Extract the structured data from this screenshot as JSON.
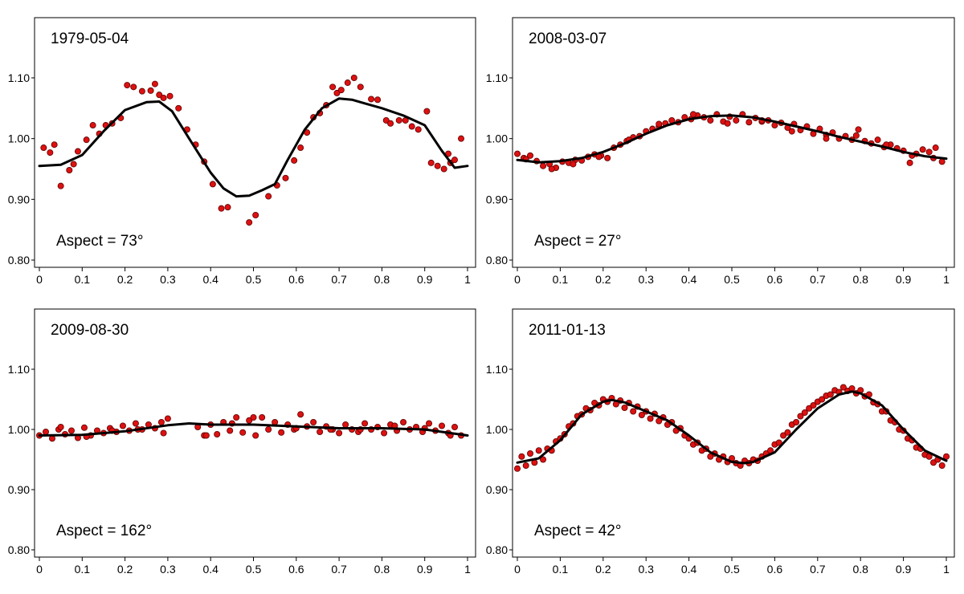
{
  "chart_data": [
    {
      "type": "scatter",
      "title": "1979-05-04",
      "annotation": "Aspect = 73°",
      "xlim": [
        0,
        1
      ],
      "ylim": [
        0.8,
        1.2
      ],
      "xticks": [
        0,
        0.1,
        0.2,
        0.3,
        0.4,
        0.5,
        0.6,
        0.7,
        0.8,
        0.9,
        1
      ],
      "xtick_labels": [
        "0",
        "0.1",
        "0.2",
        "0.3",
        "0.4",
        "0.5",
        "0.6",
        "0.7",
        "0.8",
        "0.9",
        "1"
      ],
      "yticks": [
        0.8,
        0.9,
        1.0,
        1.1
      ],
      "ytick_labels": [
        "0.80",
        "0.90",
        "1.00",
        "1.10"
      ],
      "series": [
        {
          "kind": "points",
          "color": "#dd1111",
          "x": [
            0.01,
            0.025,
            0.035,
            0.05,
            0.07,
            0.08,
            0.09,
            0.11,
            0.125,
            0.14,
            0.155,
            0.17,
            0.19,
            0.205,
            0.22,
            0.24,
            0.26,
            0.27,
            0.28,
            0.29,
            0.305,
            0.325,
            0.345,
            0.365,
            0.385,
            0.405,
            0.425,
            0.44,
            0.49,
            0.505,
            0.535,
            0.555,
            0.575,
            0.595,
            0.61,
            0.625,
            0.64,
            0.655,
            0.67,
            0.685,
            0.695,
            0.705,
            0.72,
            0.735,
            0.75,
            0.775,
            0.79,
            0.81,
            0.82,
            0.84,
            0.855,
            0.87,
            0.885,
            0.905,
            0.915,
            0.93,
            0.945,
            0.955,
            0.96,
            0.97,
            0.985
          ],
          "y": [
            0.985,
            0.977,
            0.99,
            0.922,
            0.948,
            0.958,
            0.979,
            0.998,
            1.022,
            1.008,
            1.022,
            1.025,
            1.034,
            1.088,
            1.085,
            1.078,
            1.079,
            1.09,
            1.072,
            1.067,
            1.07,
            1.05,
            1.015,
            0.99,
            0.962,
            0.925,
            0.885,
            0.887,
            0.862,
            0.874,
            0.905,
            0.923,
            0.935,
            0.964,
            0.985,
            1.01,
            1.035,
            1.042,
            1.055,
            1.085,
            1.075,
            1.08,
            1.092,
            1.1,
            1.085,
            1.065,
            1.064,
            1.03,
            1.025,
            1.03,
            1.03,
            1.02,
            1.015,
            1.045,
            0.96,
            0.955,
            0.95,
            0.975,
            0.96,
            0.965,
            1.0
          ]
        },
        {
          "kind": "fit",
          "color": "#000000",
          "x": [
            0,
            0.05,
            0.1,
            0.15,
            0.2,
            0.25,
            0.28,
            0.31,
            0.35,
            0.4,
            0.43,
            0.46,
            0.49,
            0.52,
            0.55,
            0.58,
            0.62,
            0.66,
            0.7,
            0.73,
            0.76,
            0.8,
            0.85,
            0.9,
            0.94,
            0.97,
            1.0
          ],
          "y": [
            0.955,
            0.957,
            0.973,
            1.012,
            1.047,
            1.06,
            1.061,
            1.045,
            1.0,
            0.944,
            0.918,
            0.905,
            0.906,
            0.915,
            0.925,
            0.965,
            1.015,
            1.05,
            1.066,
            1.064,
            1.058,
            1.05,
            1.038,
            1.022,
            0.98,
            0.952,
            0.955
          ]
        }
      ]
    },
    {
      "type": "scatter",
      "title": "2008-03-07",
      "annotation": "Aspect = 27°",
      "xlim": [
        0,
        1
      ],
      "ylim": [
        0.8,
        1.2
      ],
      "xticks": [
        0,
        0.1,
        0.2,
        0.3,
        0.4,
        0.5,
        0.6,
        0.7,
        0.8,
        0.9,
        1
      ],
      "xtick_labels": [
        "0",
        "0.1",
        "0.2",
        "0.3",
        "0.4",
        "0.5",
        "0.6",
        "0.7",
        "0.8",
        "0.9",
        "1"
      ],
      "yticks": [
        0.8,
        0.9,
        1.0,
        1.1
      ],
      "ytick_labels": [
        "0.80",
        "0.90",
        "1.00",
        "1.10"
      ],
      "series": [
        {
          "kind": "points",
          "color": "#dd1111",
          "x": [
            0.0,
            0.015,
            0.03,
            0.045,
            0.06,
            0.075,
            0.09,
            0.105,
            0.12,
            0.135,
            0.15,
            0.165,
            0.18,
            0.195,
            0.21,
            0.225,
            0.24,
            0.255,
            0.27,
            0.285,
            0.3,
            0.315,
            0.33,
            0.345,
            0.36,
            0.375,
            0.39,
            0.405,
            0.42,
            0.435,
            0.45,
            0.465,
            0.48,
            0.495,
            0.51,
            0.525,
            0.54,
            0.555,
            0.57,
            0.585,
            0.6,
            0.615,
            0.63,
            0.645,
            0.66,
            0.675,
            0.69,
            0.705,
            0.72,
            0.735,
            0.75,
            0.765,
            0.78,
            0.795,
            0.81,
            0.825,
            0.84,
            0.855,
            0.87,
            0.885,
            0.9,
            0.915,
            0.93,
            0.945,
            0.96,
            0.975,
            0.99,
            0.02,
            0.08,
            0.13,
            0.19,
            0.26,
            0.33,
            0.41,
            0.49,
            0.57,
            0.64,
            0.72,
            0.79,
            0.86,
            0.92,
            0.97
          ],
          "y": [
            0.975,
            0.968,
            0.972,
            0.963,
            0.955,
            0.958,
            0.952,
            0.962,
            0.96,
            0.965,
            0.964,
            0.97,
            0.974,
            0.972,
            0.968,
            0.985,
            0.99,
            0.996,
            1.002,
            1.004,
            1.012,
            1.016,
            1.02,
            1.025,
            1.03,
            1.027,
            1.035,
            1.032,
            1.038,
            1.035,
            1.03,
            1.04,
            1.028,
            1.036,
            1.03,
            1.04,
            1.027,
            1.034,
            1.028,
            1.03,
            1.022,
            1.026,
            1.018,
            1.024,
            1.014,
            1.02,
            1.008,
            1.016,
            1.006,
            1.01,
            1.0,
            1.004,
            0.998,
            1.015,
            0.996,
            0.992,
            0.998,
            0.986,
            0.99,
            0.984,
            0.98,
            0.96,
            0.975,
            0.982,
            0.978,
            0.985,
            0.962,
            0.966,
            0.95,
            0.958,
            0.97,
            0.998,
            1.024,
            1.04,
            1.025,
            1.03,
            1.012,
            1.0,
            1.005,
            0.99,
            0.972,
            0.968
          ]
        },
        {
          "kind": "fit",
          "color": "#000000",
          "x": [
            0,
            0.05,
            0.1,
            0.15,
            0.2,
            0.25,
            0.3,
            0.35,
            0.4,
            0.45,
            0.5,
            0.55,
            0.6,
            0.65,
            0.7,
            0.75,
            0.8,
            0.85,
            0.9,
            0.95,
            1.0
          ],
          "y": [
            0.965,
            0.961,
            0.963,
            0.968,
            0.978,
            0.992,
            1.008,
            1.022,
            1.032,
            1.037,
            1.038,
            1.035,
            1.028,
            1.02,
            1.012,
            1.003,
            0.995,
            0.987,
            0.978,
            0.971,
            0.967
          ]
        }
      ]
    },
    {
      "type": "scatter",
      "title": "2009-08-30",
      "annotation": "Aspect = 162°",
      "xlim": [
        0,
        1
      ],
      "ylim": [
        0.8,
        1.2
      ],
      "xticks": [
        0,
        0.1,
        0.2,
        0.3,
        0.4,
        0.5,
        0.6,
        0.7,
        0.8,
        0.9,
        1
      ],
      "xtick_labels": [
        "0",
        "0.1",
        "0.2",
        "0.3",
        "0.4",
        "0.5",
        "0.6",
        "0.7",
        "0.8",
        "0.9",
        "1"
      ],
      "yticks": [
        0.8,
        0.9,
        1.0,
        1.1
      ],
      "ytick_labels": [
        "0.80",
        "0.90",
        "1.00",
        "1.10"
      ],
      "series": [
        {
          "kind": "points",
          "color": "#dd1111",
          "x": [
            0.0,
            0.015,
            0.03,
            0.045,
            0.06,
            0.075,
            0.09,
            0.105,
            0.12,
            0.135,
            0.15,
            0.165,
            0.18,
            0.195,
            0.21,
            0.225,
            0.24,
            0.255,
            0.27,
            0.285,
            0.3,
            0.37,
            0.385,
            0.4,
            0.415,
            0.43,
            0.445,
            0.46,
            0.475,
            0.49,
            0.505,
            0.52,
            0.535,
            0.55,
            0.565,
            0.58,
            0.595,
            0.61,
            0.625,
            0.64,
            0.655,
            0.67,
            0.685,
            0.7,
            0.715,
            0.73,
            0.745,
            0.76,
            0.775,
            0.79,
            0.805,
            0.82,
            0.835,
            0.85,
            0.865,
            0.88,
            0.895,
            0.91,
            0.925,
            0.94,
            0.955,
            0.97,
            0.985,
            0.05,
            0.11,
            0.17,
            0.23,
            0.29,
            0.39,
            0.45,
            0.5,
            0.6,
            0.68,
            0.75,
            0.83,
            0.9,
            0.96
          ],
          "y": [
            0.99,
            0.996,
            0.985,
            1.0,
            0.992,
            0.998,
            0.986,
            1.003,
            0.99,
            0.998,
            0.994,
            1.002,
            0.996,
            1.006,
            0.998,
            1.01,
            1.0,
            1.008,
            1.002,
            1.012,
            1.018,
            1.004,
            0.99,
            1.008,
            0.992,
            1.012,
            0.998,
            1.02,
            0.995,
            1.015,
            0.99,
            1.02,
            1.0,
            1.012,
            0.995,
            1.008,
            1.0,
            1.025,
            1.005,
            1.012,
            0.996,
            1.005,
            1.0,
            0.994,
            1.008,
            1.0,
            0.996,
            1.01,
            1.0,
            1.004,
            0.994,
            1.008,
            0.998,
            1.012,
            1.0,
            1.004,
            0.996,
            1.01,
            0.998,
            1.006,
            0.994,
            1.004,
            0.99,
            1.004,
            0.988,
            0.998,
            1.0,
            0.994,
            0.99,
            1.01,
            1.02,
            1.002,
            1.0,
            1.0,
            1.006,
            1.002,
            0.99
          ]
        },
        {
          "kind": "fit",
          "color": "#000000",
          "x": [
            0,
            0.1,
            0.2,
            0.3,
            0.35,
            0.4,
            0.5,
            0.6,
            0.7,
            0.8,
            0.9,
            1.0
          ],
          "y": [
            0.99,
            0.991,
            0.997,
            1.007,
            1.01,
            1.008,
            1.008,
            1.005,
            1.002,
            1.002,
            1.0,
            0.99
          ]
        }
      ]
    },
    {
      "type": "scatter",
      "title": "2011-01-13",
      "annotation": "Aspect = 42°",
      "xlim": [
        0,
        1
      ],
      "ylim": [
        0.8,
        1.2
      ],
      "xticks": [
        0,
        0.1,
        0.2,
        0.3,
        0.4,
        0.5,
        0.6,
        0.7,
        0.8,
        0.9,
        1
      ],
      "xtick_labels": [
        "0",
        "0.1",
        "0.2",
        "0.3",
        "0.4",
        "0.5",
        "0.6",
        "0.7",
        "0.8",
        "0.9",
        "1"
      ],
      "yticks": [
        0.8,
        0.9,
        1.0,
        1.1
      ],
      "ytick_labels": [
        "0.80",
        "0.90",
        "1.00",
        "1.10"
      ],
      "series": [
        {
          "kind": "points",
          "color": "#dd1111",
          "x": [
            0.0,
            0.01,
            0.02,
            0.03,
            0.04,
            0.05,
            0.06,
            0.07,
            0.08,
            0.09,
            0.1,
            0.11,
            0.12,
            0.13,
            0.14,
            0.15,
            0.16,
            0.17,
            0.18,
            0.19,
            0.2,
            0.21,
            0.22,
            0.23,
            0.24,
            0.25,
            0.26,
            0.27,
            0.28,
            0.29,
            0.3,
            0.31,
            0.32,
            0.33,
            0.34,
            0.35,
            0.36,
            0.37,
            0.38,
            0.39,
            0.4,
            0.41,
            0.42,
            0.43,
            0.44,
            0.45,
            0.46,
            0.47,
            0.48,
            0.49,
            0.5,
            0.51,
            0.52,
            0.53,
            0.54,
            0.55,
            0.56,
            0.57,
            0.58,
            0.59,
            0.6,
            0.61,
            0.62,
            0.63,
            0.64,
            0.65,
            0.66,
            0.67,
            0.68,
            0.69,
            0.7,
            0.71,
            0.72,
            0.73,
            0.74,
            0.75,
            0.76,
            0.77,
            0.78,
            0.79,
            0.8,
            0.81,
            0.82,
            0.83,
            0.84,
            0.85,
            0.86,
            0.87,
            0.88,
            0.89,
            0.9,
            0.91,
            0.92,
            0.93,
            0.94,
            0.95,
            0.96,
            0.97,
            0.98,
            0.99,
            1.0
          ],
          "y": [
            0.935,
            0.955,
            0.94,
            0.96,
            0.945,
            0.965,
            0.95,
            0.968,
            0.965,
            0.98,
            0.985,
            0.992,
            1.005,
            1.01,
            1.022,
            1.025,
            1.035,
            1.032,
            1.044,
            1.04,
            1.05,
            1.046,
            1.052,
            1.042,
            1.048,
            1.036,
            1.044,
            1.03,
            1.038,
            1.024,
            1.03,
            1.018,
            1.026,
            1.014,
            1.02,
            1.008,
            1.012,
            0.998,
            1.002,
            0.99,
            0.985,
            0.975,
            0.978,
            0.965,
            0.968,
            0.955,
            0.96,
            0.95,
            0.955,
            0.946,
            0.952,
            0.944,
            0.94,
            0.948,
            0.944,
            0.95,
            0.948,
            0.955,
            0.96,
            0.965,
            0.975,
            0.978,
            0.99,
            0.995,
            1.008,
            1.012,
            1.022,
            1.028,
            1.035,
            1.04,
            1.046,
            1.05,
            1.056,
            1.058,
            1.065,
            1.062,
            1.07,
            1.064,
            1.068,
            1.06,
            1.065,
            1.055,
            1.058,
            1.045,
            1.042,
            1.03,
            1.03,
            1.015,
            1.012,
            1.0,
            0.998,
            0.985,
            0.982,
            0.97,
            0.968,
            0.958,
            0.955,
            0.945,
            0.95,
            0.94,
            0.955
          ]
        },
        {
          "kind": "fit",
          "color": "#000000",
          "x": [
            0,
            0.05,
            0.1,
            0.15,
            0.2,
            0.22,
            0.25,
            0.3,
            0.35,
            0.4,
            0.45,
            0.5,
            0.53,
            0.55,
            0.6,
            0.65,
            0.7,
            0.75,
            0.78,
            0.8,
            0.85,
            0.9,
            0.95,
            1.0
          ],
          "y": [
            0.945,
            0.952,
            0.982,
            1.025,
            1.046,
            1.049,
            1.045,
            1.03,
            1.015,
            0.99,
            0.962,
            0.946,
            0.944,
            0.946,
            0.962,
            1.0,
            1.035,
            1.058,
            1.063,
            1.06,
            1.04,
            1.0,
            0.965,
            0.948
          ]
        }
      ]
    }
  ]
}
